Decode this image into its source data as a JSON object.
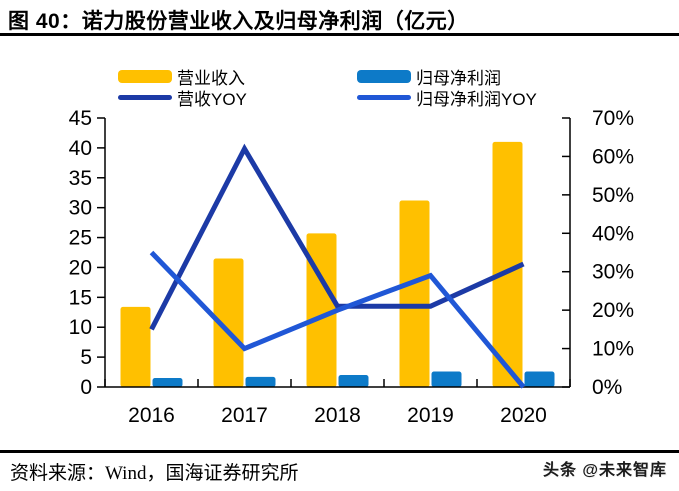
{
  "header": {
    "title": "图 40：诺力股份营业收入及归母净利润（亿元）"
  },
  "legend": {
    "items": [
      {
        "label": "营业收入",
        "swatch": "bar",
        "color": "#FFC000"
      },
      {
        "label": "归母净利润",
        "swatch": "bar",
        "color": "#0D7AC8"
      },
      {
        "label": "营收YOY",
        "swatch": "line",
        "color": "#1C3AA6"
      },
      {
        "label": "归母净利润YOY",
        "swatch": "line",
        "color": "#2057D6"
      }
    ]
  },
  "footer": {
    "source": "资料来源：Wind，国海证券研究所",
    "watermark": "头条 @未来智库"
  },
  "colors": {
    "revenue_bar": "#FFC000",
    "net_profit_bar": "#0D7AC8",
    "revenue_yoy_line": "#1C3AA6",
    "net_profit_yoy_line": "#2057D6",
    "axis": "#000000",
    "background": "#FFFFFF"
  },
  "chart_data": {
    "type": "bar",
    "subtype": "combo-bar-line-dual-axis",
    "title": "诺力股份营业收入及归母净利润（亿元）",
    "categories": [
      "2016",
      "2017",
      "2018",
      "2019",
      "2020"
    ],
    "series": [
      {
        "name": "营业收入",
        "kind": "bar",
        "axis": "left",
        "unit": "亿元",
        "color": "#FFC000",
        "values": [
          13.4,
          21.5,
          25.7,
          31.2,
          41.0
        ]
      },
      {
        "name": "归母净利润",
        "kind": "bar",
        "axis": "left",
        "unit": "亿元",
        "color": "#0D7AC8",
        "values": [
          1.5,
          1.7,
          2.0,
          2.6,
          2.6
        ]
      },
      {
        "name": "营收YOY",
        "kind": "line",
        "axis": "right",
        "unit": "%",
        "color": "#1C3AA6",
        "values": [
          15,
          62,
          21,
          21,
          32
        ]
      },
      {
        "name": "归母净利润YOY",
        "kind": "line",
        "axis": "right",
        "unit": "%",
        "color": "#2057D6",
        "values": [
          35,
          10,
          20,
          29,
          0
        ]
      }
    ],
    "left_axis": {
      "min": 0,
      "max": 45,
      "step": 5,
      "tick_labels": [
        "0",
        "5",
        "10",
        "15",
        "20",
        "25",
        "30",
        "35",
        "40",
        "45"
      ]
    },
    "right_axis": {
      "min": 0,
      "max": 70,
      "step": 10,
      "tick_labels": [
        "0%",
        "10%",
        "20%",
        "30%",
        "40%",
        "50%",
        "60%",
        "70%"
      ]
    },
    "grid": false,
    "legend_position": "top"
  }
}
